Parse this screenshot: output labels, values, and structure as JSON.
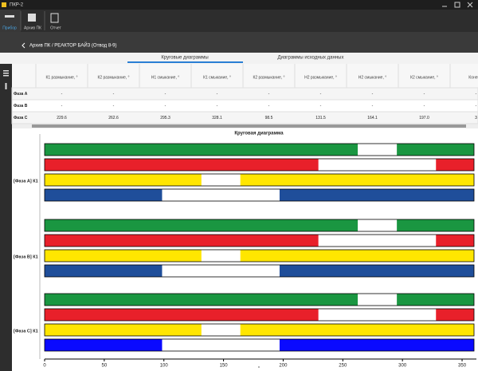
{
  "window_title": "ПКР-2",
  "toolbar": [
    "Прибор",
    "Архив ПК",
    "Отчет"
  ],
  "breadcrumb": "Архив ПК / РЕАКТОР БАЙЗ (Отвод 8-9)",
  "tabs": [
    "Круговые диаграммы",
    "Диаграммы исходных данных"
  ],
  "table": {
    "headers": [
      "К1 размыкание, °",
      "К2 размыкание, °",
      "Н1 смыкание, °",
      "К1 смыкание, °",
      "К2 размыкание, °",
      "Н2 размыкание, °",
      "Н2 смыкание, °",
      "К2 смыкание, °",
      "Конец д"
    ],
    "rows": [
      [
        "Фаза А",
        "-",
        "-",
        "-",
        "-",
        "-",
        "-",
        "-",
        "-",
        "-"
      ],
      [
        "Фаза В",
        "-",
        "-",
        "-",
        "-",
        "-",
        "-",
        "-",
        "-",
        "-"
      ],
      [
        "Фаза С",
        "229.6",
        "262.6",
        "295.3",
        "328.1",
        "98.5",
        "131.5",
        "164.1",
        "197.0",
        "3"
      ]
    ]
  },
  "chart_data": {
    "type": "circular_bars",
    "title": "Круговая диаграмма",
    "xlabel": "°",
    "xlim": [
      0,
      360
    ],
    "xticks": [
      0,
      50,
      100,
      150,
      200,
      250,
      300,
      350
    ],
    "groups": [
      {
        "name": "[Фаза А] К1",
        "rows": [
          {
            "color": "#1a9641",
            "gap": [
              262.6,
              295.3
            ]
          },
          {
            "color": "#e8202a",
            "gap": [
              229.6,
              328.1
            ]
          },
          {
            "color": "#ffe600",
            "gap": [
              131.5,
              164.1
            ]
          },
          {
            "color": "#1f4e9a",
            "gap": [
              98.5,
              197.0
            ]
          }
        ]
      },
      {
        "name": "[Фаза В] К1",
        "rows": [
          {
            "color": "#1a9641",
            "gap": [
              262.6,
              295.3
            ]
          },
          {
            "color": "#e8202a",
            "gap": [
              229.6,
              328.1
            ]
          },
          {
            "color": "#ffe600",
            "gap": [
              131.5,
              164.1
            ]
          },
          {
            "color": "#1f4e9a",
            "gap": [
              98.5,
              197.0
            ]
          }
        ]
      },
      {
        "name": "[Фаза С] К1",
        "rows": [
          {
            "color": "#1a9641",
            "gap": [
              262.6,
              295.3
            ]
          },
          {
            "color": "#e8202a",
            "gap": [
              229.6,
              328.1
            ]
          },
          {
            "color": "#ffe600",
            "gap": [
              131.5,
              164.1
            ]
          },
          {
            "color": "#0a0aff",
            "gap": [
              98.5,
              197.0
            ]
          }
        ]
      }
    ]
  }
}
